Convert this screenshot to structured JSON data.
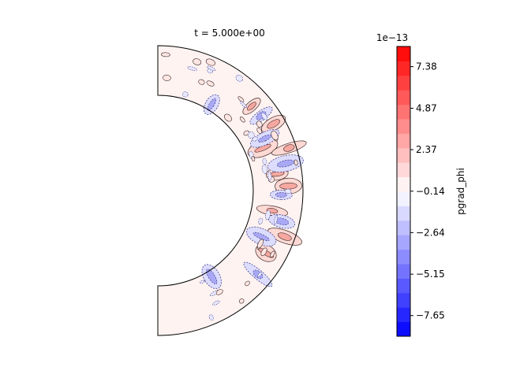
{
  "chart_data": {
    "type": "contour",
    "title": "t = 5.000e+00",
    "domain": "meridional half annulus",
    "colormap": "bwr",
    "colorbar": {
      "label": "pgrad_phi",
      "offset_text": "1e−13",
      "ticks": [
        "7.38",
        "4.87",
        "2.37",
        "−0.14",
        "−2.64",
        "−5.15",
        "−7.65"
      ],
      "tick_values": [
        7.38,
        4.87,
        2.37,
        -0.14,
        -2.64,
        -5.15,
        -7.65
      ],
      "range": [
        -8.9,
        8.6
      ],
      "levels": 20,
      "placement": "right"
    },
    "features": [
      {
        "kind": "positive",
        "r": 0.87,
        "theta_deg": 42
      },
      {
        "kind": "positive",
        "r": 0.92,
        "theta_deg": 30
      },
      {
        "kind": "positive",
        "r": 0.78,
        "theta_deg": 22
      },
      {
        "kind": "positive",
        "r": 0.95,
        "theta_deg": 18
      },
      {
        "kind": "positive",
        "r": 0.83,
        "theta_deg": 8
      },
      {
        "kind": "positive",
        "r": 0.9,
        "theta_deg": 2
      },
      {
        "kind": "positive",
        "r": 0.8,
        "theta_deg": -10
      },
      {
        "kind": "positive",
        "r": 0.93,
        "theta_deg": -20
      },
      {
        "kind": "positive",
        "r": 0.86,
        "theta_deg": -30
      },
      {
        "kind": "negative",
        "r": 0.88,
        "theta_deg": 36
      },
      {
        "kind": "negative",
        "r": 0.82,
        "theta_deg": 26
      },
      {
        "kind": "negative",
        "r": 0.9,
        "theta_deg": 12
      },
      {
        "kind": "negative",
        "r": 0.85,
        "theta_deg": -2
      },
      {
        "kind": "negative",
        "r": 0.88,
        "theta_deg": -14
      },
      {
        "kind": "negative",
        "r": 0.78,
        "theta_deg": -24
      },
      {
        "kind": "negative",
        "r": 0.9,
        "theta_deg": -40
      },
      {
        "kind": "negative",
        "r": 0.7,
        "theta_deg": 58
      },
      {
        "kind": "negative",
        "r": 0.7,
        "theta_deg": -58
      }
    ]
  }
}
